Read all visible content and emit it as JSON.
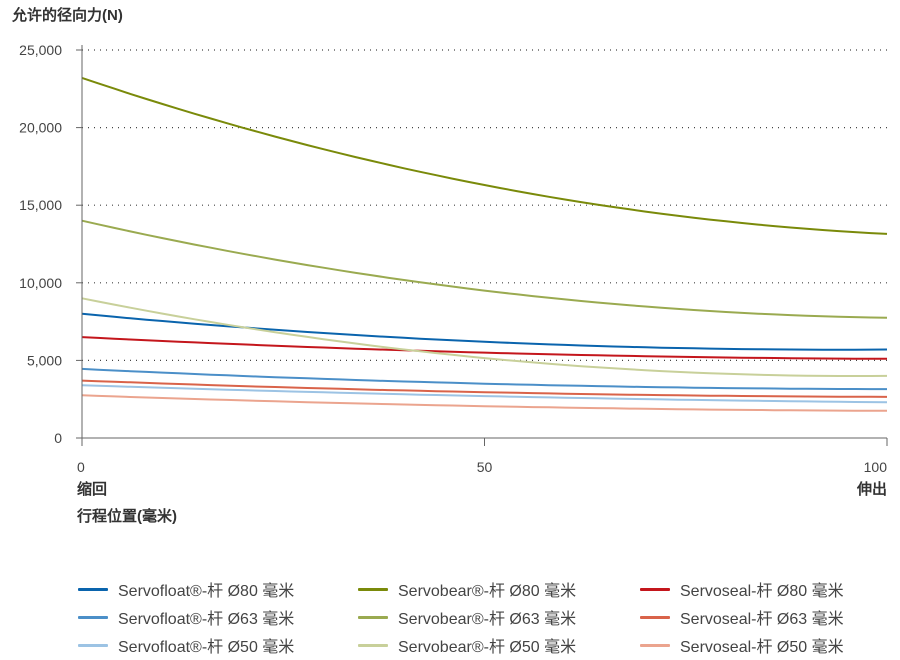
{
  "chart_data": {
    "type": "line",
    "title": "允许的径向力(N)",
    "xlabel": "行程位置(毫米)",
    "x_end_labels": {
      "start": "缩回",
      "end": "伸出"
    },
    "xlim": [
      0,
      100
    ],
    "ylim": [
      0,
      25000
    ],
    "xticks": [
      0,
      50,
      100
    ],
    "xtick_labels": [
      "0",
      "50",
      "100"
    ],
    "yticks": [
      0,
      5000,
      10000,
      15000,
      20000,
      25000
    ],
    "ytick_labels": [
      "0",
      "5,000",
      "10,000",
      "15,000",
      "20,000",
      "25,000"
    ],
    "grid": "horizontal-dotted",
    "legend_placement": "bottom",
    "x": [
      0,
      50,
      100
    ],
    "series": [
      {
        "name": "Servofloat®-杆 Ø80 毫米",
        "color": "#0a64ad",
        "values": [
          8000,
          6200,
          5700
        ]
      },
      {
        "name": "Servobear®-杆 Ø80 毫米",
        "color": "#7a8a0a",
        "values": [
          23200,
          16300,
          13150
        ]
      },
      {
        "name": "Servoseal-杆 Ø80 毫米",
        "color": "#c4161c",
        "values": [
          6500,
          5500,
          5100
        ]
      },
      {
        "name": "Servofloat®-杆 Ø63 毫米",
        "color": "#4b8fc8",
        "values": [
          4450,
          3500,
          3150
        ]
      },
      {
        "name": "Servobear®-杆 Ø63 毫米",
        "color": "#9aaa50",
        "values": [
          14000,
          9500,
          7750
        ]
      },
      {
        "name": "Servoseal-杆 Ø63 毫米",
        "color": "#d9634a",
        "values": [
          3700,
          2950,
          2650
        ]
      },
      {
        "name": "Servofloat®-杆 Ø50 毫米",
        "color": "#9cc3e4",
        "values": [
          3400,
          2700,
          2300
        ]
      },
      {
        "name": "Servobear®-杆 Ø50 毫米",
        "color": "#c8d09a",
        "values": [
          9000,
          5150,
          4000
        ]
      },
      {
        "name": "Servoseal-杆 Ø50 毫米",
        "color": "#eba48e",
        "values": [
          2750,
          2050,
          1750
        ]
      }
    ]
  }
}
